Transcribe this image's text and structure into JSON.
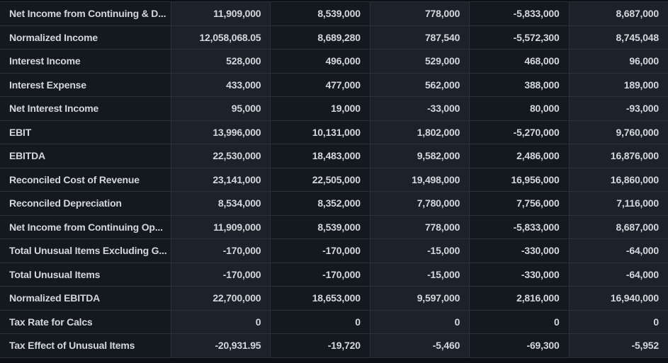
{
  "colors": {
    "column_dark": "#14181f",
    "column_light": "#1c212a",
    "grid_line": "#2b3039",
    "text": "#d4d7dc",
    "background": "#0c0f13"
  },
  "table": {
    "type": "table",
    "description_row_labels_column_then_five_period_columns": true,
    "rows": [
      {
        "label": "Net Income from Continuing & D...",
        "values": [
          "11,909,000",
          "8,539,000",
          "778,000",
          "-5,833,000",
          "8,687,000"
        ]
      },
      {
        "label": "Normalized Income",
        "values": [
          "12,058,068.05",
          "8,689,280",
          "787,540",
          "-5,572,300",
          "8,745,048"
        ]
      },
      {
        "label": "Interest Income",
        "values": [
          "528,000",
          "496,000",
          "529,000",
          "468,000",
          "96,000"
        ]
      },
      {
        "label": "Interest Expense",
        "values": [
          "433,000",
          "477,000",
          "562,000",
          "388,000",
          "189,000"
        ]
      },
      {
        "label": "Net Interest Income",
        "values": [
          "95,000",
          "19,000",
          "-33,000",
          "80,000",
          "-93,000"
        ]
      },
      {
        "label": "EBIT",
        "values": [
          "13,996,000",
          "10,131,000",
          "1,802,000",
          "-5,270,000",
          "9,760,000"
        ]
      },
      {
        "label": "EBITDA",
        "values": [
          "22,530,000",
          "18,483,000",
          "9,582,000",
          "2,486,000",
          "16,876,000"
        ]
      },
      {
        "label": "Reconciled Cost of Revenue",
        "values": [
          "23,141,000",
          "22,505,000",
          "19,498,000",
          "16,956,000",
          "16,860,000"
        ]
      },
      {
        "label": "Reconciled Depreciation",
        "values": [
          "8,534,000",
          "8,352,000",
          "7,780,000",
          "7,756,000",
          "7,116,000"
        ]
      },
      {
        "label": "Net Income from Continuing Op...",
        "values": [
          "11,909,000",
          "8,539,000",
          "778,000",
          "-5,833,000",
          "8,687,000"
        ]
      },
      {
        "label": "Total Unusual Items Excluding G...",
        "values": [
          "-170,000",
          "-170,000",
          "-15,000",
          "-330,000",
          "-64,000"
        ]
      },
      {
        "label": "Total Unusual Items",
        "values": [
          "-170,000",
          "-170,000",
          "-15,000",
          "-330,000",
          "-64,000"
        ]
      },
      {
        "label": "Normalized EBITDA",
        "values": [
          "22,700,000",
          "18,653,000",
          "9,597,000",
          "2,816,000",
          "16,940,000"
        ]
      },
      {
        "label": "Tax Rate for Calcs",
        "values": [
          "0",
          "0",
          "0",
          "0",
          "0"
        ]
      },
      {
        "label": "Tax Effect of Unusual Items",
        "values": [
          "-20,931.95",
          "-19,720",
          "-5,460",
          "-69,300",
          "-5,952"
        ]
      }
    ]
  }
}
